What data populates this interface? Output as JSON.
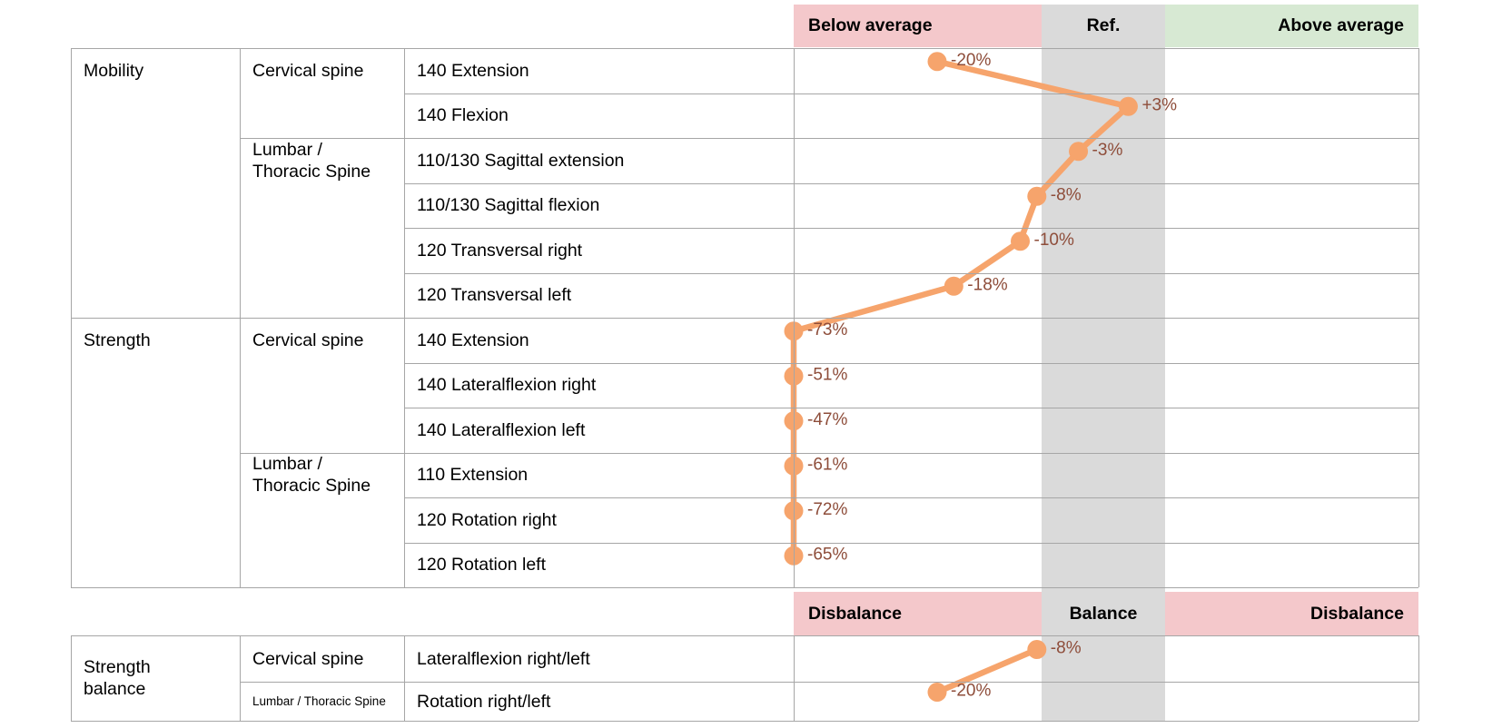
{
  "zones_top": {
    "below": "Below average",
    "ref": "Ref.",
    "above": "Above average"
  },
  "zones_balance": {
    "left": "Disbalance",
    "center": "Balance",
    "right": "Disbalance"
  },
  "colors": {
    "below_bg": "#f4c8cb",
    "ref_bg": "#dadada",
    "above_bg": "#d7e9d3",
    "line": "#f6a46c",
    "value_label": "#8e4d3a",
    "grid": "#a6a6a6"
  },
  "sections": [
    {
      "category_lines": [
        "Mobility"
      ],
      "groups": [
        {
          "region_lines": [
            "Cervical spine"
          ],
          "rows": [
            {
              "label": "140 Extension",
              "value": -20,
              "value_label": "-20%"
            },
            {
              "label": "140 Flexion",
              "value": 3,
              "value_label": "+3%"
            }
          ]
        },
        {
          "region_lines": [
            "Lumbar /",
            "Thoracic Spine"
          ],
          "rows": [
            {
              "label": "110/130 Sagittal extension",
              "value": -3,
              "value_label": "-3%"
            },
            {
              "label": "110/130 Sagittal flexion",
              "value": -8,
              "value_label": "-8%"
            },
            {
              "label": "120 Transversal right",
              "value": -10,
              "value_label": "-10%"
            },
            {
              "label": "120 Transversal left",
              "value": -18,
              "value_label": "-18%"
            }
          ]
        }
      ]
    },
    {
      "category_lines": [
        "Strength"
      ],
      "groups": [
        {
          "region_lines": [
            "Cervical spine"
          ],
          "rows": [
            {
              "label": "140 Extension",
              "value": -73,
              "value_label": "-73%"
            },
            {
              "label": "140 Lateralflexion right",
              "value": -51,
              "value_label": "-51%"
            },
            {
              "label": "140 Lateralflexion left",
              "value": -47,
              "value_label": "-47%"
            }
          ]
        },
        {
          "region_lines": [
            "Lumbar /",
            "Thoracic Spine"
          ],
          "rows": [
            {
              "label": "110 Extension",
              "value": -61,
              "value_label": "-61%"
            },
            {
              "label": "120 Rotation right",
              "value": -72,
              "value_label": "-72%"
            },
            {
              "label": "120 Rotation left",
              "value": -65,
              "value_label": "-65%"
            }
          ]
        }
      ]
    }
  ],
  "balance_section": {
    "category_lines": [
      "Strength",
      "balance"
    ],
    "groups": [
      {
        "region_lines": [
          "Cervical spine"
        ],
        "small": false,
        "rows": [
          {
            "label": "Lateralflexion right/left",
            "value": -8,
            "value_label": "-8%"
          }
        ]
      },
      {
        "region_lines": [
          "Lumbar / Thoracic Spine"
        ],
        "small": true,
        "rows": [
          {
            "label": "Rotation right/left",
            "value": -20,
            "value_label": "-20%"
          }
        ]
      }
    ]
  },
  "chart_data": {
    "type": "line",
    "x_unit": "percent deviation from reference (0 = center of Ref. zone)",
    "x_zones": [
      {
        "label": "Below average",
        "range": [
          -37,
          -7
        ]
      },
      {
        "label": "Ref.",
        "range": [
          -7,
          7
        ]
      },
      {
        "label": "Above average",
        "range": [
          7,
          38
        ]
      }
    ],
    "clamped_at_percent": -37,
    "series": [
      {
        "name": "Mobility",
        "categories": [
          "140 Extension",
          "140 Flexion",
          "110/130 Sagittal extension",
          "110/130 Sagittal flexion",
          "120 Transversal right",
          "120 Transversal left"
        ],
        "values": [
          -20,
          3,
          -3,
          -8,
          -10,
          -18
        ]
      },
      {
        "name": "Strength",
        "categories": [
          "140 Extension",
          "140 Lateralflexion right",
          "140 Lateralflexion left",
          "110 Extension",
          "120 Rotation right",
          "120 Rotation left"
        ],
        "values": [
          -73,
          -51,
          -47,
          -61,
          -72,
          -65
        ]
      },
      {
        "name": "Strength balance",
        "categories": [
          "Lateralflexion right/left",
          "Rotation right/left"
        ],
        "values": [
          -8,
          -20
        ],
        "zones": [
          "Disbalance",
          "Balance",
          "Disbalance"
        ]
      }
    ]
  }
}
